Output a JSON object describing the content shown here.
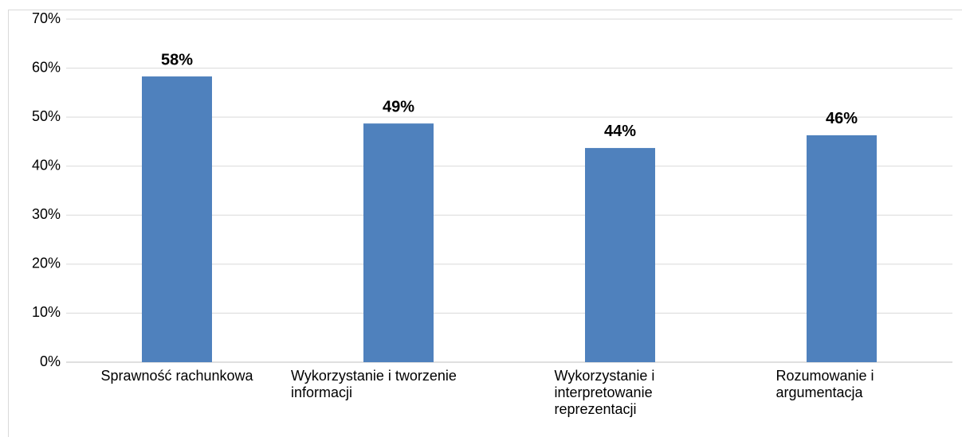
{
  "chart_data": {
    "type": "bar",
    "categories": [
      "Sprawność rachunkowa",
      "Wykorzystanie i tworzenie informacji",
      "Wykorzystanie i interpretowanie reprezentacji",
      "Rozumowanie i argumentacja"
    ],
    "values": [
      58.3,
      48.7,
      43.7,
      46.3
    ],
    "value_labels": [
      "58%",
      "49%",
      "44%",
      "46%"
    ],
    "color": "#4f81bd",
    "ylim": [
      0,
      70
    ],
    "yticks": [
      {
        "value": 0,
        "label": "0%"
      },
      {
        "value": 10,
        "label": "10%"
      },
      {
        "value": 20,
        "label": "20%"
      },
      {
        "value": 30,
        "label": "30%"
      },
      {
        "value": 40,
        "label": "40%"
      },
      {
        "value": 50,
        "label": "50%"
      },
      {
        "value": 60,
        "label": "60%"
      },
      {
        "value": 70,
        "label": "70%"
      }
    ],
    "grid": true
  }
}
